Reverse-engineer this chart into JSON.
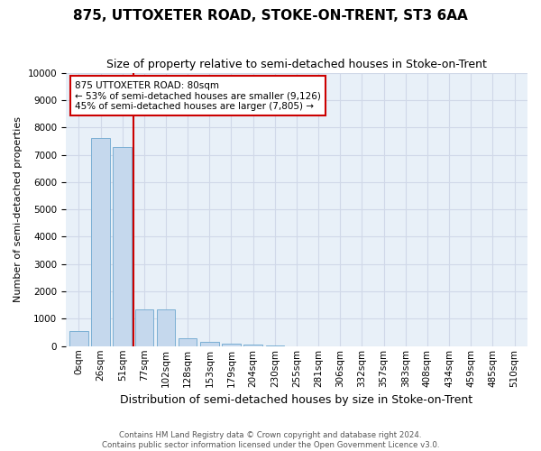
{
  "title": "875, UTTOXETER ROAD, STOKE-ON-TRENT, ST3 6AA",
  "subtitle": "Size of property relative to semi-detached houses in Stoke-on-Trent",
  "xlabel": "Distribution of semi-detached houses by size in Stoke-on-Trent",
  "ylabel": "Number of semi-detached properties",
  "footer": "Contains HM Land Registry data © Crown copyright and database right 2024.\nContains public sector information licensed under the Open Government Licence v3.0.",
  "bar_labels": [
    "0sqm",
    "26sqm",
    "51sqm",
    "77sqm",
    "102sqm",
    "128sqm",
    "153sqm",
    "179sqm",
    "204sqm",
    "230sqm",
    "255sqm",
    "281sqm",
    "306sqm",
    "332sqm",
    "357sqm",
    "383sqm",
    "408sqm",
    "434sqm",
    "459sqm",
    "485sqm",
    "510sqm"
  ],
  "bar_values": [
    560,
    7620,
    7280,
    1360,
    1360,
    300,
    160,
    90,
    60,
    20,
    0,
    0,
    0,
    0,
    0,
    0,
    0,
    0,
    0,
    0,
    0
  ],
  "bar_color": "#c5d8ed",
  "bar_edge_color": "#7bafd4",
  "vline_x": 2.5,
  "vline_color": "#cc0000",
  "annotation_text": "875 UTTOXETER ROAD: 80sqm\n← 53% of semi-detached houses are smaller (9,126)\n45% of semi-detached houses are larger (7,805) →",
  "annotation_box_color": "#ffffff",
  "annotation_box_edge": "#cc0000",
  "ylim": [
    0,
    10000
  ],
  "yticks": [
    0,
    1000,
    2000,
    3000,
    4000,
    5000,
    6000,
    7000,
    8000,
    9000,
    10000
  ],
  "grid_color": "#d0d8e8",
  "background_color": "#e8f0f8",
  "title_fontsize": 11,
  "subtitle_fontsize": 9,
  "ylabel_fontsize": 8,
  "xlabel_fontsize": 9,
  "tick_fontsize": 7.5,
  "annotation_fontsize": 7.5
}
